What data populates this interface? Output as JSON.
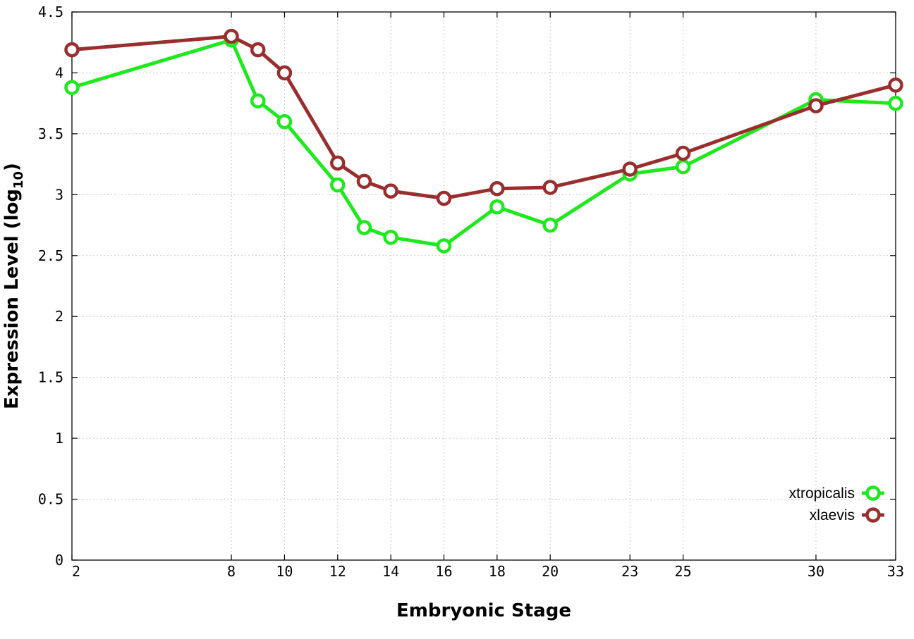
{
  "chart_data": {
    "type": "line",
    "xlabel": "Embryonic Stage",
    "ylabel": "Expression Level (log",
    "ylabel_sub": "10",
    "ylabel_tail": ")",
    "x_ticks": [
      "2",
      "8",
      "10",
      "12",
      "14",
      "16",
      "18",
      "20",
      "23",
      "25",
      "30",
      "33"
    ],
    "y_ticks": [
      "0",
      "0.5",
      "1",
      "1.5",
      "2",
      "2.5",
      "3",
      "3.5",
      "4",
      "4.5"
    ],
    "ylim": [
      0,
      4.5
    ],
    "grid": true,
    "legend_position": "bottom-right",
    "x": [
      2,
      8,
      9,
      10,
      12,
      13,
      14,
      16,
      18,
      20,
      23,
      25,
      30,
      33
    ],
    "series": [
      {
        "name": "xtropicalis",
        "color": "#1ee81e",
        "values": [
          3.88,
          4.27,
          3.77,
          3.6,
          3.08,
          2.73,
          2.65,
          2.58,
          2.9,
          2.75,
          3.17,
          3.23,
          3.78,
          3.75
        ]
      },
      {
        "name": "xlaevis",
        "color": "#992e2e",
        "values": [
          4.19,
          4.3,
          4.19,
          4.0,
          3.26,
          3.11,
          3.03,
          2.97,
          3.05,
          3.06,
          3.21,
          3.34,
          3.73,
          3.9
        ]
      }
    ]
  }
}
